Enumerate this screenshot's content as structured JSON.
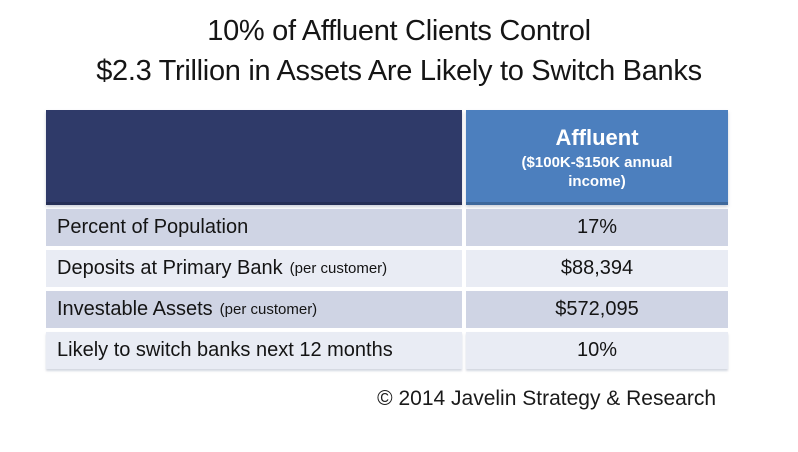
{
  "chart_data": {
    "type": "table",
    "title": "10% of Affluent Clients Control $2.3 Trillion in Assets Are Likely to Switch Banks",
    "title_lines": [
      "10% of Affluent Clients Control",
      "$2.3 Trillion in Assets Are Likely to Switch Banks"
    ],
    "columns": [
      {
        "header": "",
        "subheader": ""
      },
      {
        "header": "Affluent",
        "subheader": "($100K-$150K annual income)"
      }
    ],
    "rows": [
      {
        "label": "Percent of Population",
        "note": "",
        "value": "17%"
      },
      {
        "label": "Deposits at Primary Bank",
        "note": "(per customer)",
        "value": "$88,394"
      },
      {
        "label": "Investable Assets",
        "note": "(per customer)",
        "value": "$572,095"
      },
      {
        "label": "Likely to switch banks next 12 months",
        "note": "",
        "value": "10%"
      }
    ],
    "source": "© 2014 Javelin Strategy & Research",
    "legend": false
  },
  "colors": {
    "header_left_bg": "#2F3A69",
    "header_right_bg": "#4C7FBE",
    "row_band_dark": "#CFD4E4",
    "row_band_light": "#E9ECF4",
    "header_text": "#FFFFFF",
    "body_text": "#141414",
    "page_bg": "#FFFFFF"
  }
}
